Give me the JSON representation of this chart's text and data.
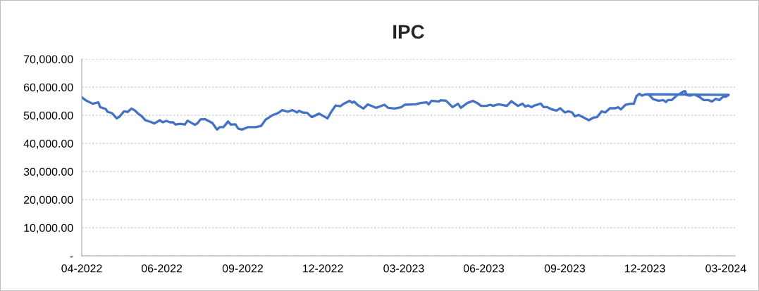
{
  "chart_data": {
    "type": "line",
    "title": "IPC",
    "x": [
      "2022-04-01",
      "2022-04-05",
      "2022-04-13",
      "2022-04-19",
      "2022-04-21",
      "2022-04-27",
      "2022-04-29",
      "2022-05-04",
      "2022-05-09",
      "2022-05-12",
      "2022-05-17",
      "2022-05-21",
      "2022-05-25",
      "2022-05-29",
      "2022-06-02",
      "2022-06-05",
      "2022-06-09",
      "2022-06-16",
      "2022-06-19",
      "2022-06-25",
      "2022-06-28",
      "2022-07-02",
      "2022-07-06",
      "2022-07-09",
      "2022-07-12",
      "2022-07-17",
      "2022-07-22",
      "2022-07-25",
      "2022-08-02",
      "2022-08-05",
      "2022-08-08",
      "2022-08-13",
      "2022-08-21",
      "2022-08-26",
      "2022-08-29",
      "2022-09-02",
      "2022-09-07",
      "2022-09-10",
      "2022-09-15",
      "2022-09-18",
      "2022-09-22",
      "2022-09-29",
      "2022-10-07",
      "2022-10-13",
      "2022-10-18",
      "2022-10-25",
      "2022-10-31",
      "2022-11-05",
      "2022-11-11",
      "2022-11-16",
      "2022-11-21",
      "2022-11-23",
      "2022-11-27",
      "2022-12-02",
      "2022-12-07",
      "2022-12-15",
      "2022-12-24",
      "2022-12-29",
      "2023-01-02",
      "2023-01-07",
      "2023-01-11",
      "2023-01-17",
      "2023-01-20",
      "2023-01-22",
      "2023-01-26",
      "2023-02-01",
      "2023-02-06",
      "2023-02-15",
      "2023-02-24",
      "2023-02-28",
      "2023-03-07",
      "2023-03-14",
      "2023-03-18",
      "2023-03-30",
      "2023-04-04",
      "2023-04-11",
      "2023-04-13",
      "2023-04-16",
      "2023-04-24",
      "2023-04-26",
      "2023-05-02",
      "2023-05-09",
      "2023-05-15",
      "2023-05-18",
      "2023-05-25",
      "2023-05-31",
      "2023-06-05",
      "2023-06-09",
      "2023-06-15",
      "2023-06-19",
      "2023-06-22",
      "2023-06-28",
      "2023-07-07",
      "2023-07-12",
      "2023-07-19",
      "2023-07-24",
      "2023-07-27",
      "2023-07-30",
      "2023-08-03",
      "2023-08-06",
      "2023-08-13",
      "2023-08-16",
      "2023-08-20",
      "2023-08-25",
      "2023-08-30",
      "2023-09-03",
      "2023-09-08",
      "2023-09-12",
      "2023-09-16",
      "2023-09-19",
      "2023-09-23",
      "2023-09-26",
      "2023-10-04",
      "2023-10-09",
      "2023-10-13",
      "2023-10-18",
      "2023-10-22",
      "2023-10-27",
      "2023-11-02",
      "2023-11-05",
      "2023-11-08",
      "2023-11-13",
      "2023-11-18",
      "2023-11-22",
      "2023-11-25",
      "2023-11-28",
      "2023-12-01",
      "2023-12-04",
      "2023-12-08",
      "2023-12-13",
      "2023-12-19",
      "2023-12-24",
      "2023-12-27",
      "2023-12-29",
      "2024-01-02",
      "2024-01-07",
      "2024-01-11",
      "2024-01-15",
      "2024-01-17",
      "2024-01-18",
      "2024-01-22",
      "2024-01-27",
      "2024-02-01",
      "2024-02-06",
      "2024-02-11",
      "2024-02-15",
      "2024-02-19",
      "2024-02-23",
      "2024-02-27",
      "2024-03-01",
      "2024-03-04",
      "2023-12-08"
    ],
    "series": [
      {
        "color": "#4472c4",
        "values": [
          56400,
          55400,
          54100,
          54600,
          52900,
          52250,
          51250,
          50750,
          48900,
          49500,
          51400,
          51200,
          52400,
          51650,
          50400,
          49750,
          48300,
          47500,
          47100,
          48250,
          47500,
          48000,
          47500,
          47550,
          46700,
          47000,
          46700,
          48100,
          46600,
          47250,
          48500,
          48650,
          47250,
          44900,
          45800,
          45800,
          47800,
          46700,
          46800,
          45300,
          44900,
          45800,
          45800,
          46250,
          48500,
          50000,
          50750,
          51850,
          51250,
          51850,
          51000,
          51600,
          51000,
          50850,
          49350,
          50600,
          48900,
          51650,
          53500,
          53250,
          54150,
          55150,
          54500,
          54900,
          53650,
          52400,
          53900,
          52650,
          53750,
          52650,
          52400,
          52850,
          53750,
          53900,
          54350,
          54600,
          53900,
          55150,
          54900,
          55350,
          55150,
          52900,
          54100,
          52650,
          54350,
          55150,
          54350,
          53350,
          53350,
          53750,
          53350,
          53900,
          53350,
          55000,
          53350,
          54150,
          53100,
          53500,
          52900,
          53500,
          54150,
          52900,
          52900,
          52100,
          51650,
          52500,
          51000,
          51400,
          51000,
          49600,
          50150,
          49650,
          48250,
          49150,
          49350,
          51400,
          51000,
          52500,
          52500,
          52900,
          52100,
          53750,
          54100,
          54100,
          56850,
          57650,
          57000,
          57400,
          57500,
          55750,
          55150,
          55400,
          54750,
          55400,
          55400,
          56850,
          57650,
          58500,
          58500,
          57250,
          57000,
          57400,
          56600,
          55400,
          55400,
          54900,
          55850,
          55400,
          56600,
          56600,
          57250,
          57500
        ]
      }
    ],
    "xlim": [
      "2022-04-01",
      "2024-03-11"
    ],
    "xticks": [
      {
        "value": "2022-04-01",
        "label": "04-2022"
      },
      {
        "value": "2022-06-27",
        "label": "06-2022"
      },
      {
        "value": "2022-09-23",
        "label": "09-2022"
      },
      {
        "value": "2022-12-19",
        "label": "12-2022"
      },
      {
        "value": "2023-03-17",
        "label": "03-2023"
      },
      {
        "value": "2023-06-12",
        "label": "06-2023"
      },
      {
        "value": "2023-09-08",
        "label": "09-2023"
      },
      {
        "value": "2023-12-04",
        "label": "12-2023"
      },
      {
        "value": "2024-03-01",
        "label": "03-2024"
      }
    ],
    "ylim": [
      0,
      70000
    ],
    "yticks": [
      {
        "value": 0,
        "label": "-"
      },
      {
        "value": 10000,
        "label": "10,000.00"
      },
      {
        "value": 20000,
        "label": "20,000.00"
      },
      {
        "value": 30000,
        "label": "30,000.00"
      },
      {
        "value": 40000,
        "label": "40,000.00"
      },
      {
        "value": 50000,
        "label": "50,000.00"
      },
      {
        "value": 60000,
        "label": "60,000.00"
      },
      {
        "value": 70000,
        "label": "70,000.00"
      }
    ],
    "grid": "y",
    "line_style": "solid"
  }
}
